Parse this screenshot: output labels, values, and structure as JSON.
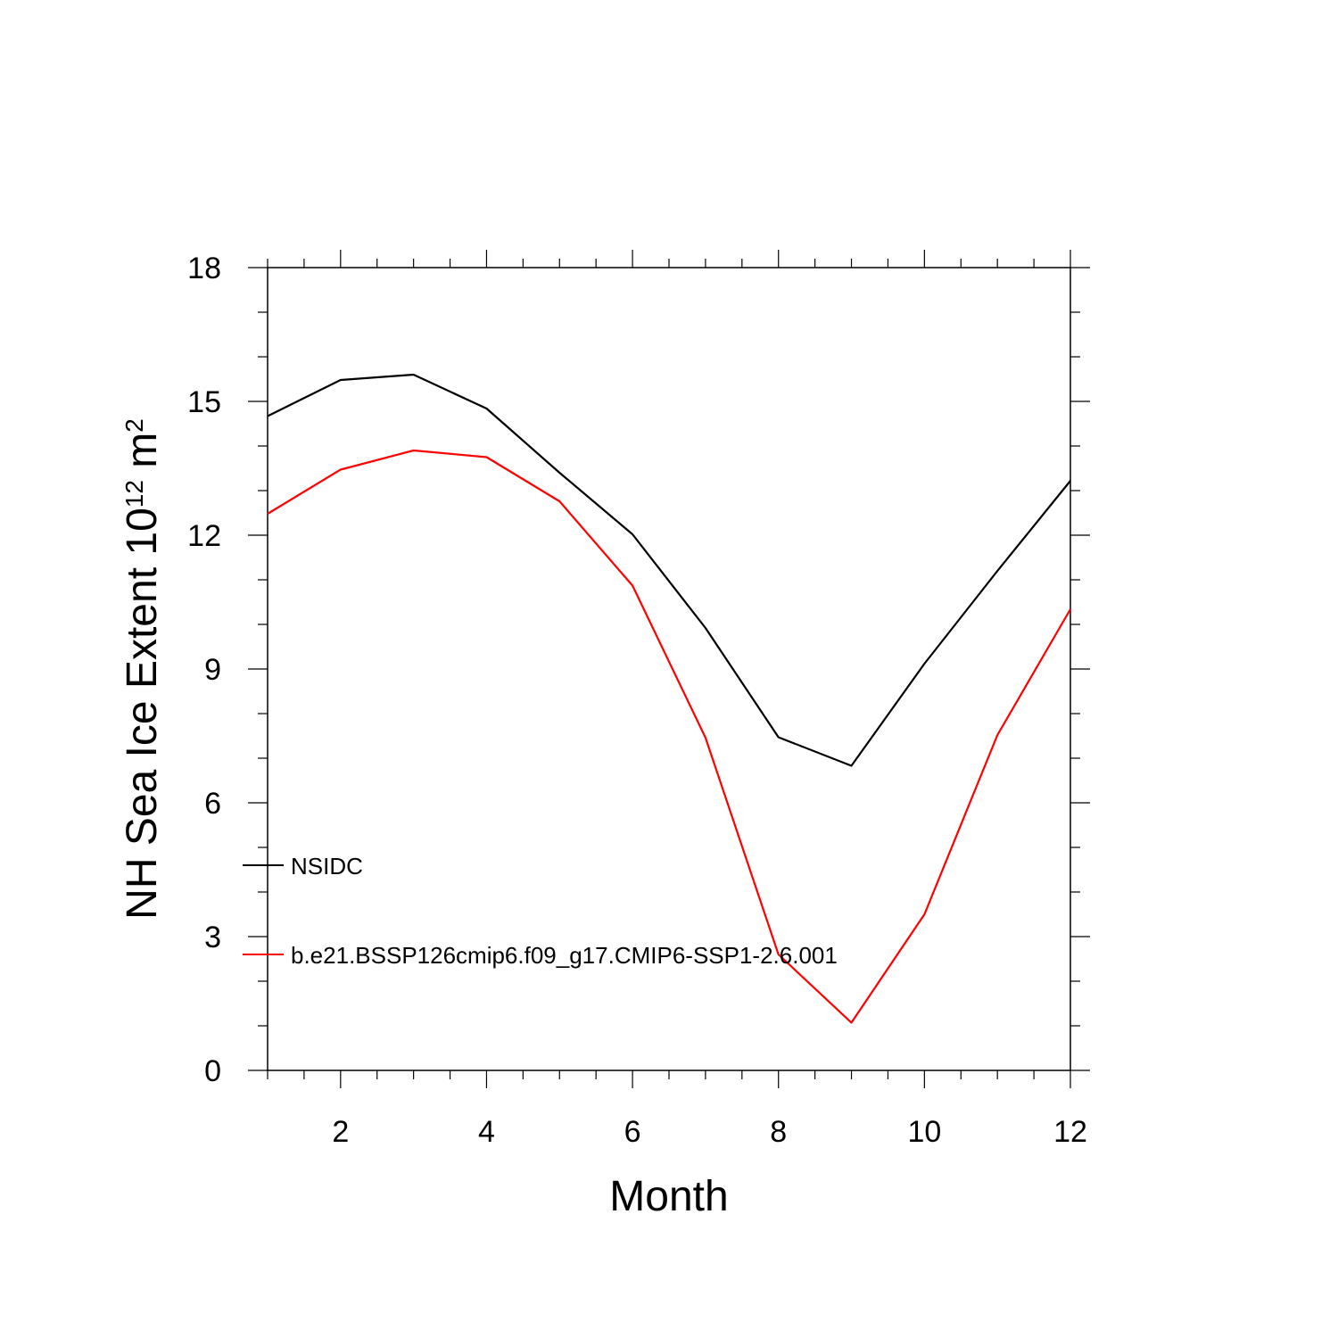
{
  "chart_data": {
    "type": "line",
    "title": "",
    "xlabel": "Month",
    "ylabel_base": "NH Sea Ice Extent 10",
    "ylabel_exp1": "12",
    "ylabel_unit": " m",
    "ylabel_exp2": "2",
    "xlim": [
      1,
      12
    ],
    "ylim": [
      0,
      18
    ],
    "xticks": [
      2,
      4,
      6,
      8,
      10,
      12
    ],
    "yticks": [
      0,
      3,
      6,
      9,
      12,
      15,
      18
    ],
    "x": [
      1,
      2,
      3,
      4,
      5,
      6,
      7,
      8,
      9,
      10,
      11,
      12
    ],
    "series": [
      {
        "name": "NSIDC",
        "color": "#000000",
        "values": [
          14.67,
          15.48,
          15.6,
          14.84,
          13.4,
          12.02,
          9.92,
          7.47,
          6.83,
          9.12,
          11.2,
          13.22
        ]
      },
      {
        "name": "b.e21.BSSP126cmip6.f09_g17.CMIP6-SSP1-2.6.001",
        "color": "#ff0000",
        "values": [
          12.48,
          13.47,
          13.9,
          13.75,
          12.76,
          10.87,
          7.46,
          2.6,
          1.07,
          3.5,
          7.52,
          10.34
        ]
      }
    ],
    "legend_position": "lower-left",
    "grid": false
  }
}
